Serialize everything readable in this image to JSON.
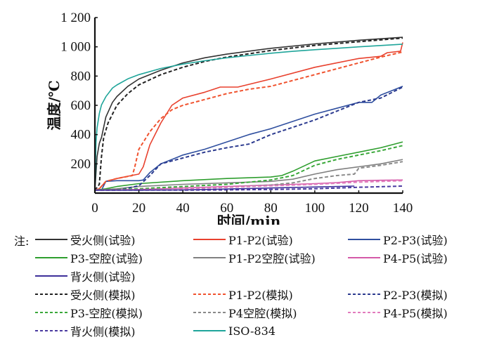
{
  "chart_data": {
    "type": "line",
    "title": "",
    "xlabel": "时间/min",
    "ylabel": "温度/℃",
    "xlim": [
      0,
      140
    ],
    "ylim": [
      0,
      1200
    ],
    "x_ticks": [
      "0",
      "20",
      "40",
      "60",
      "80",
      "100",
      "120",
      "140"
    ],
    "y_ticks": [
      "200",
      "400",
      "600",
      "800",
      "1 000",
      "1 200"
    ],
    "x_tick_values": [
      0,
      20,
      40,
      60,
      80,
      100,
      120,
      140
    ],
    "y_tick_values": [
      200,
      400,
      600,
      800,
      1000,
      1200
    ],
    "grid": false,
    "legend_placement": "bottom",
    "legend_note": "注:",
    "series": [
      {
        "name": "受火侧(试验)",
        "color": "#333333",
        "dash": false,
        "x": [
          0,
          1,
          2,
          3,
          5,
          8,
          10,
          15,
          20,
          30,
          40,
          50,
          60,
          80,
          100,
          120,
          140
        ],
        "y": [
          20,
          250,
          340,
          380,
          520,
          620,
          660,
          730,
          780,
          840,
          890,
          925,
          950,
          990,
          1020,
          1045,
          1065
        ]
      },
      {
        "name": "P1-P2(试验)",
        "color": "#e8412e",
        "dash": false,
        "x": [
          0,
          2,
          5,
          10,
          15,
          20,
          22,
          25,
          30,
          35,
          40,
          50,
          57,
          65,
          80,
          100,
          120,
          130,
          133,
          139,
          140
        ],
        "y": [
          20,
          30,
          80,
          100,
          115,
          130,
          180,
          330,
          480,
          600,
          650,
          690,
          725,
          725,
          780,
          860,
          920,
          935,
          960,
          970,
          1030
        ]
      },
      {
        "name": "P2-P3(试验)",
        "color": "#2f4f9f",
        "dash": false,
        "x": [
          0,
          3,
          5,
          10,
          20,
          22,
          25,
          30,
          35,
          40,
          50,
          60,
          70,
          80,
          90,
          100,
          110,
          120,
          126,
          130,
          140
        ],
        "y": [
          20,
          20,
          80,
          85,
          85,
          90,
          140,
          200,
          230,
          260,
          300,
          350,
          400,
          440,
          490,
          540,
          580,
          620,
          620,
          670,
          730
        ]
      },
      {
        "name": "P3-空腔(试验)",
        "color": "#2e9e2e",
        "dash": false,
        "x": [
          0,
          5,
          10,
          20,
          40,
          60,
          80,
          85,
          90,
          100,
          110,
          120,
          130,
          140
        ],
        "y": [
          20,
          30,
          45,
          65,
          85,
          100,
          110,
          120,
          150,
          220,
          250,
          280,
          310,
          350
        ]
      },
      {
        "name": "P1-P2空腔(试验)",
        "color": "#808080",
        "dash": false,
        "x": [
          0,
          10,
          20,
          40,
          60,
          80,
          90,
          100,
          110,
          120,
          130,
          140
        ],
        "y": [
          20,
          30,
          45,
          60,
          70,
          80,
          95,
          130,
          160,
          180,
          200,
          230
        ]
      },
      {
        "name": "P4-P5(试验)",
        "color": "#d45aa8",
        "dash": false,
        "x": [
          0,
          20,
          40,
          60,
          80,
          100,
          110,
          120,
          130,
          140
        ],
        "y": [
          20,
          25,
          35,
          45,
          55,
          65,
          72,
          85,
          88,
          90
        ]
      },
      {
        "name": "背火侧(试验)",
        "color": "#3d2f9a",
        "dash": false,
        "x": [
          0,
          20,
          40,
          60,
          80,
          100,
          118
        ],
        "y": [
          20,
          20,
          22,
          28,
          35,
          42,
          48
        ]
      },
      {
        "name": "受火侧(模拟)",
        "color": "#222222",
        "dash": true,
        "x": [
          0,
          2,
          3,
          4,
          6,
          10,
          15,
          20,
          30,
          40,
          50,
          60,
          80,
          100,
          120,
          140
        ],
        "y": [
          20,
          60,
          250,
          380,
          480,
          600,
          680,
          740,
          810,
          860,
          900,
          930,
          975,
          1010,
          1035,
          1060
        ]
      },
      {
        "name": "P1-P2(模拟)",
        "color": "#f0522e",
        "dash": true,
        "x": [
          0,
          2,
          5,
          10,
          17,
          18,
          20,
          25,
          30,
          35,
          40,
          50,
          60,
          70,
          80,
          100,
          120,
          130,
          140
        ],
        "y": [
          20,
          30,
          80,
          100,
          120,
          170,
          300,
          420,
          510,
          570,
          600,
          640,
          680,
          710,
          730,
          810,
          890,
          930,
          965
        ]
      },
      {
        "name": "P2-P3(模拟)",
        "color": "#2b3a8f",
        "dash": true,
        "x": [
          0,
          10,
          20,
          25,
          30,
          35,
          40,
          50,
          60,
          70,
          80,
          90,
          100,
          110,
          120,
          130,
          140
        ],
        "y": [
          20,
          20,
          50,
          120,
          200,
          220,
          240,
          280,
          310,
          335,
          400,
          450,
          500,
          560,
          620,
          650,
          725
        ]
      },
      {
        "name": "P3-空腔(模拟)",
        "color": "#3aa83a",
        "dash": true,
        "x": [
          0,
          10,
          20,
          40,
          60,
          80,
          90,
          100,
          110,
          120,
          130,
          140
        ],
        "y": [
          20,
          25,
          30,
          45,
          60,
          90,
          120,
          190,
          230,
          260,
          290,
          325
        ]
      },
      {
        "name": "P4空腔(模拟)",
        "color": "#8a8a8a",
        "dash": true,
        "x": [
          0,
          20,
          40,
          60,
          80,
          90,
          100,
          110,
          118,
          120,
          130,
          140
        ],
        "y": [
          20,
          25,
          30,
          40,
          55,
          70,
          100,
          120,
          130,
          170,
          190,
          215
        ]
      },
      {
        "name": "P4-P5(模拟)",
        "color": "#e27bbd",
        "dash": true,
        "x": [
          0,
          20,
          40,
          60,
          80,
          100,
          120,
          140
        ],
        "y": [
          20,
          22,
          30,
          40,
          50,
          60,
          75,
          85
        ]
      },
      {
        "name": "背火侧(模拟)",
        "color": "#4a3aa0",
        "dash": true,
        "x": [
          0,
          20,
          40,
          60,
          80,
          100,
          120,
          140
        ],
        "y": [
          20,
          20,
          20,
          22,
          25,
          30,
          40,
          48
        ]
      },
      {
        "name": "ISO-834",
        "color": "#1fa59a",
        "dash": false,
        "x": [
          0,
          0.5,
          1,
          2,
          3,
          5,
          8,
          10,
          15,
          20,
          30,
          40,
          50,
          60,
          70,
          80,
          90,
          100,
          110,
          120,
          130,
          140
        ],
        "y": [
          20,
          349,
          445,
          544,
          603,
          659,
          718,
          739,
          781,
          810,
          852,
          882,
          905,
          925,
          941,
          956,
          969,
          980,
          990,
          1000,
          1009,
          1018
        ]
      }
    ]
  },
  "legend": {
    "note": "注:",
    "items": [
      {
        "label": "受火侧(试验)"
      },
      {
        "label": "P1-P2(试验)"
      },
      {
        "label": "P2-P3(试验)"
      },
      {
        "label": "P3-空腔(试验)"
      },
      {
        "label": "P1-P2空腔(试验)"
      },
      {
        "label": "P4-P5(试验)"
      },
      {
        "label": "背火侧(试验)"
      },
      {
        "label": "受火侧(模拟)"
      },
      {
        "label": "P1-P2(模拟)"
      },
      {
        "label": "P2-P3(模拟)"
      },
      {
        "label": "P3-空腔(模拟)"
      },
      {
        "label": "P4空腔(模拟)"
      },
      {
        "label": "P4-P5(模拟)"
      },
      {
        "label": "背火侧(模拟)"
      },
      {
        "label": "ISO-834"
      }
    ]
  }
}
